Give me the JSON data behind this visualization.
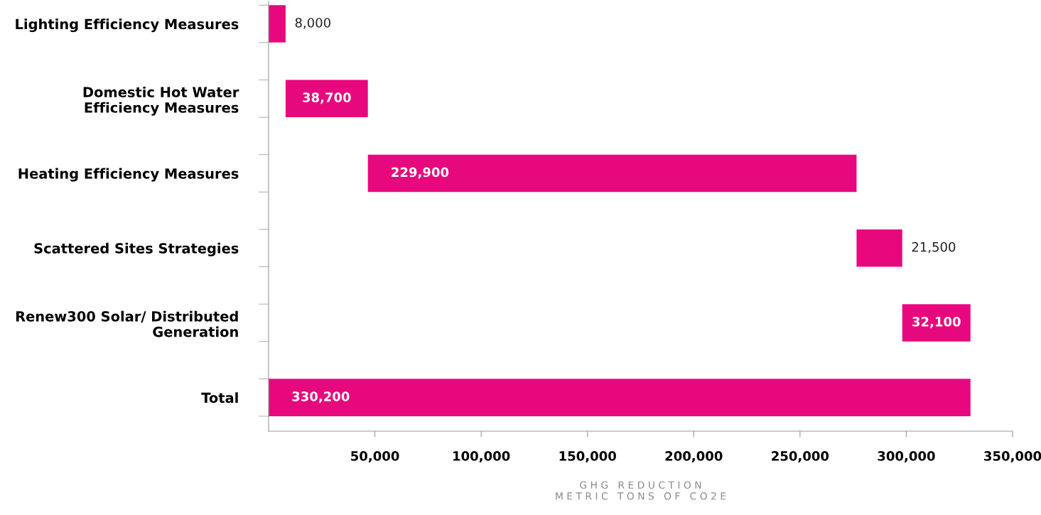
{
  "chart_data": {
    "type": "bar",
    "orientation": "horizontal",
    "categories": [
      "Lighting Efficiency Measures",
      "Domestic Hot Water\nEfficiency Measures",
      "Heating Efficiency Measures",
      "Scattered Sites Strategies",
      "Renew300 Solar/ Distributed\nGeneration",
      "Total"
    ],
    "values": [
      8000,
      38700,
      229900,
      21500,
      32100,
      330200
    ],
    "base": [
      0,
      8000,
      46700,
      276600,
      298100,
      0
    ],
    "value_labels": [
      "8,000",
      "38,700",
      "229,900",
      "21,500",
      "32,100",
      "330,200"
    ],
    "color": "#e8087e",
    "xlim": [
      0,
      350000
    ],
    "xticks": [
      {
        "value": 50000,
        "label": "50,000"
      },
      {
        "value": 100000,
        "label": "100,000"
      },
      {
        "value": 150000,
        "label": "150,000"
      },
      {
        "value": 200000,
        "label": "200,000"
      },
      {
        "value": 250000,
        "label": "250,000"
      },
      {
        "value": 300000,
        "label": "300,000"
      },
      {
        "value": 350000,
        "label": "350,000"
      }
    ],
    "xlabel": "G H G   R E D U C T I O N\nM E T R I C   T O N S   O F   C O 2 E",
    "grid": false,
    "legend": false
  }
}
